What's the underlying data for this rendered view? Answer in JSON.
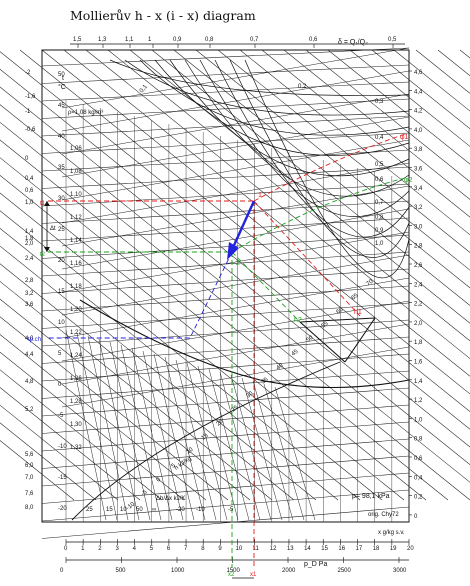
{
  "title": "Mollierův h - x (i - x) diagram",
  "top_scale_label": "δ = Q₁/Q₂",
  "top_scale_ticks": [
    "1,5",
    "1,3",
    "1,1",
    "1",
    "0,9",
    "0,8",
    "0,7",
    "0,6",
    "0,5"
  ],
  "temp_axis": {
    "label": "t",
    "unit": "°C",
    "ticks": [
      "50",
      "45",
      "40",
      "35",
      "30",
      "25",
      "20",
      "15",
      "10",
      "5",
      "0",
      "-5",
      "-10",
      "-15",
      "-20"
    ]
  },
  "left_axis_ticks": [
    "-2",
    "-1,6",
    "-1",
    "-0,6",
    "0",
    "0,4",
    "0,6",
    "1,0",
    "1,4",
    "1,8",
    "2,0",
    "2,4",
    "2,8",
    "3,2",
    "3,6",
    "4,0",
    "4,4",
    "4,8",
    "5,2",
    "5,6",
    "6,0",
    "7,0",
    "7,6",
    "8,0"
  ],
  "right_axis_ticks": [
    "4,6",
    "4,4",
    "4,2",
    "4,0",
    "3,8",
    "3,6",
    "3,4",
    "3,2",
    "3,0",
    "2,8",
    "2,6",
    "2,4",
    "2,2",
    "2,0",
    "1,8",
    "1,6",
    "1,4",
    "1,2",
    "1,0",
    "0,8",
    "0,6",
    "0,4",
    "0,2",
    "0"
  ],
  "density_ticks": [
    "1,06",
    "1,08",
    "1,10",
    "1,12",
    "1,14",
    "1,16",
    "1,18",
    "1,20",
    "1,22",
    "1,24",
    "1,26",
    "1,28",
    "1,30",
    "1,32"
  ],
  "density_label": "ρ=1,08 kg/m³",
  "phi_ticks": [
    "0,1",
    "0,2",
    "0,3",
    "0,4",
    "0,5",
    "0,6",
    "0,7",
    "0,8",
    "0,9",
    "1,0"
  ],
  "h_axis_ticks": [
    "-10",
    "-5",
    "0",
    "5",
    "10",
    "15",
    "20",
    "25",
    "30",
    "35",
    "40",
    "45",
    "50",
    "55",
    "60",
    "65",
    "70"
  ],
  "h_axis_label": "h kJ/kg",
  "dhdx_ticks": [
    "25",
    "15",
    "10",
    "50",
    "∞",
    "-20",
    "-10",
    "-5"
  ],
  "dhdx_label": "Δh/Δx  kJ/K",
  "bottom_x_ticks": [
    "0",
    "1",
    "2",
    "3",
    "4",
    "5",
    "6",
    "7",
    "8",
    "9",
    "10",
    "11",
    "12",
    "13",
    "14",
    "15",
    "16",
    "17",
    "18",
    "19",
    "20"
  ],
  "x_unit": "x  g/kg s.v.",
  "pd_ticks": [
    "0",
    "500",
    "1000",
    "1500",
    "2000",
    "2500",
    "3000"
  ],
  "pd_label": "p_D   Pa",
  "pressure_note": "p= 98,1 kPa",
  "credit": "orig. Chy72",
  "annotations": {
    "point1": "1",
    "point2": "2",
    "phi1": "φ1",
    "phi2": "φ2",
    "h1": "h1",
    "h2": "h2",
    "t1": "t1",
    "t2": "t2",
    "delta_t": "Δt",
    "tp_ch": "tp.chl",
    "x1": "x1",
    "x2": "x2"
  },
  "colors": {
    "red": "#e11d1d",
    "green": "#1aa31a",
    "blue": "#2323e0",
    "ink": "#111111"
  }
}
